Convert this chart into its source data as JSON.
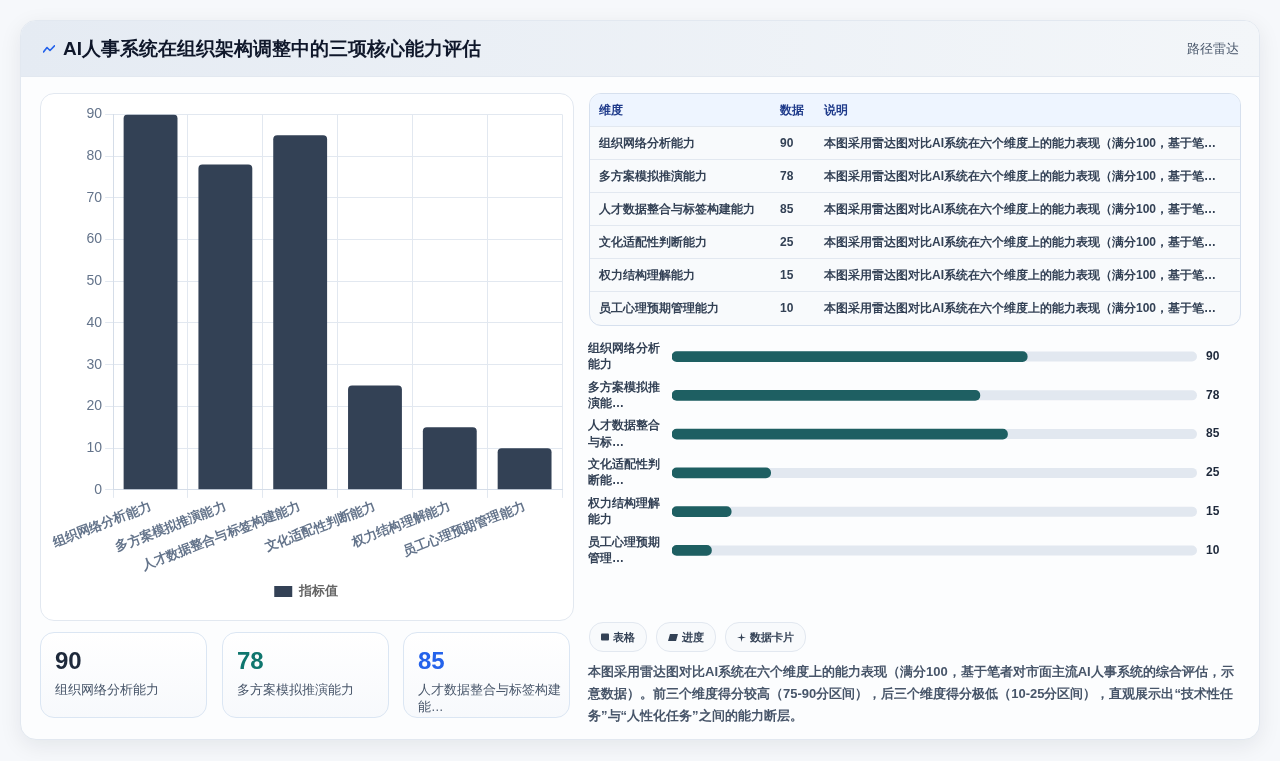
{
  "chart_data": [
    {
      "type": "other",
      "title": "AI人事系统在组织架构调整中的三项核心能力评估",
      "annotations": [
        "路径雷达"
      ]
    },
    {
      "type": "bar",
      "categories": [
        "组织网络分析能力",
        "多方案模拟推演能力",
        "人才数据整合与标签构建能力",
        "文化适配性判断能力",
        "权力结构理解能力",
        "员工心理预期管理能力"
      ],
      "series": [
        {
          "name": "指标值",
          "color": "#334155",
          "values": [
            90,
            78,
            85,
            25,
            15,
            10
          ]
        }
      ],
      "ylim": [
        0,
        90
      ],
      "yticks": [
        0,
        10,
        20,
        30,
        40,
        50,
        60,
        70,
        80,
        90
      ],
      "grid": true,
      "legend": "bottom"
    },
    {
      "type": "other",
      "categories": [
        "组织网络分析能力",
        "多方案模拟推演能力",
        "人才数据整合与标签构建能…"
      ],
      "values": [
        90,
        78,
        85
      ],
      "data_labels": true
    },
    {
      "type": "other",
      "categories": [
        "组织网络分析能力",
        "多方案模拟推演能力",
        "人才数据整合与标签构建能力",
        "文化适配性判断能力",
        "权力结构理解能力",
        "员工心理预期管理能力"
      ],
      "values": [
        90,
        78,
        85,
        25,
        15,
        10
      ],
      "data_labels": true,
      "annotations": [
        "维度",
        "数据",
        "说明",
        "本图采用雷达图对比AI系统在六个维度上的能力表现（满分100，基于笔…",
        "本图采用雷达图对比AI系统在六个维度上的能力表现（满分100，基于笔…",
        "本图采用雷达图对比AI系统在六个维度上的能力表现（满分100，基于笔…",
        "本图采用雷达图对比AI系统在六个维度上的能力表现（满分100，基于笔…",
        "本图采用雷达图对比AI系统在六个维度上的能力表现（满分100，基于笔…",
        "本图采用雷达图对比AI系统在六个维度上的能力表现（满分100，基于笔…"
      ]
    },
    {
      "type": "bar",
      "orientation": "horizontal",
      "categories": [
        "组织网络分析能力",
        "多方案模拟推演能…",
        "人才数据整合与标…",
        "文化适配性判断能…",
        "权力结构理解能力",
        "员工心理预期管理…"
      ],
      "series": [
        {
          "color": "#1e5f62",
          "values": [
            90,
            78,
            85,
            25,
            15,
            10
          ]
        }
      ],
      "xlim": [
        0,
        133
      ],
      "data_labels": true,
      "tick_labels": "y"
    },
    {
      "type": "other",
      "annotations": [
        "表格",
        "进度",
        "数据卡片",
        "本图采用雷达图对比AI系统在六个维度上的能力表现（满分100，基于笔者对市面主流AI人事系统的综合评估，示意数据）。前三个维度得分较高（75-90分区间），后三个维度得分极低（10-25分区间），直观展示出“技术性任务”与“人性化任务”之间的能力断层。"
      ]
    }
  ]
}
